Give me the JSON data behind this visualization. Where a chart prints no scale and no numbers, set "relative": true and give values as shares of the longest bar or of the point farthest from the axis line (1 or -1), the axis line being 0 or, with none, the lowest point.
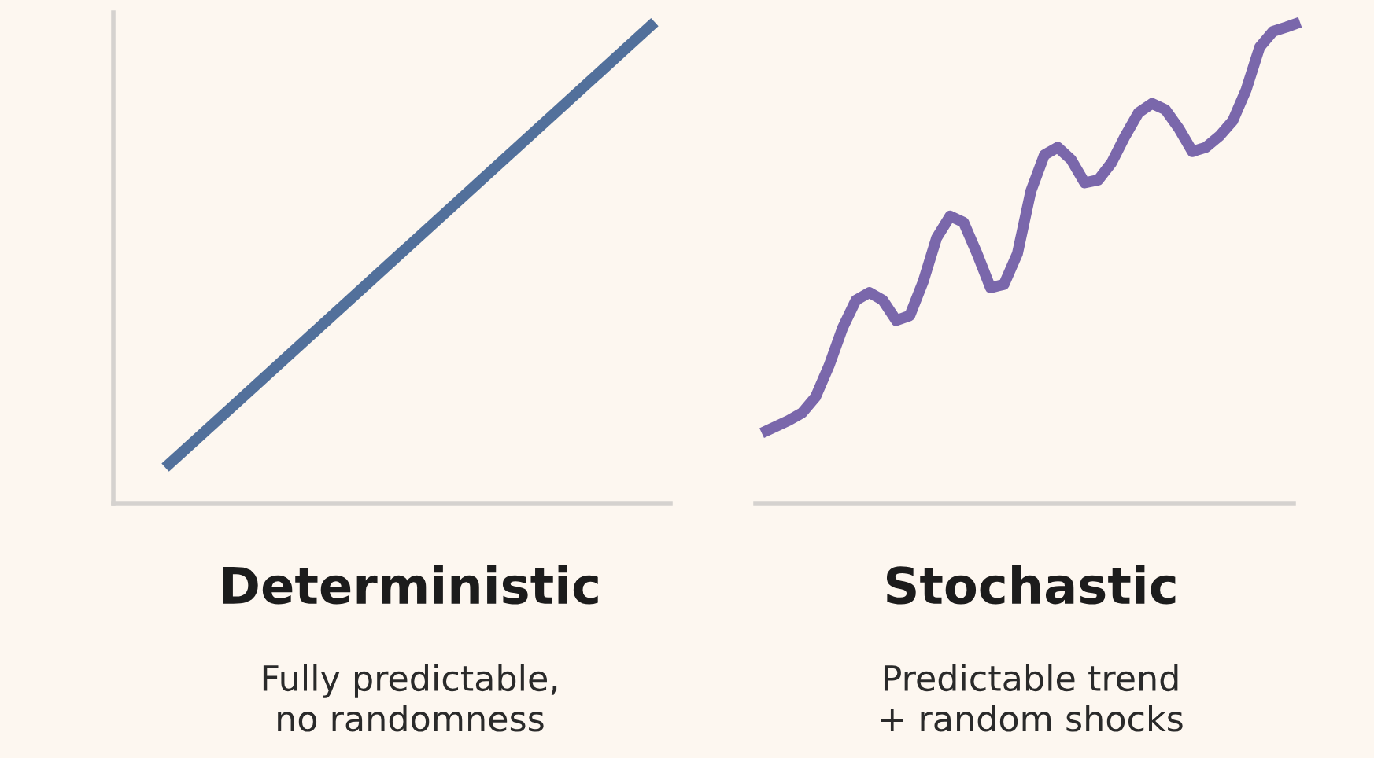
{
  "chart_data": [
    {
      "type": "line",
      "title": "Deterministic",
      "subtitle": "Fully predictable,\nno randomness",
      "relative": true,
      "grid": false,
      "legend": false,
      "categories": [
        null,
        null
      ],
      "series": [
        {
          "color": "#52709b",
          "values": [
            0.074,
            1
          ]
        }
      ]
    },
    {
      "type": "line",
      "title": "Stochastic",
      "subtitle": "Predictable trend\n+ random shocks",
      "relative": true,
      "grid": false,
      "legend": false,
      "categories": [
        null,
        null,
        null,
        null,
        null,
        null,
        null,
        null,
        null,
        null,
        null,
        null,
        null,
        null,
        null,
        null,
        null,
        null,
        null,
        null,
        null,
        null,
        null,
        null,
        null,
        null,
        null,
        null,
        null,
        null,
        null,
        null,
        null,
        null,
        null,
        null,
        null,
        null,
        null,
        null,
        null
      ],
      "series": [
        {
          "color": "#7a67ab",
          "values": [
            0.146,
            0.159,
            0.172,
            0.188,
            0.221,
            0.286,
            0.364,
            0.422,
            0.438,
            0.422,
            0.38,
            0.39,
            0.461,
            0.552,
            0.597,
            0.584,
            0.519,
            0.448,
            0.455,
            0.519,
            0.649,
            0.724,
            0.74,
            0.714,
            0.666,
            0.672,
            0.708,
            0.763,
            0.812,
            0.831,
            0.818,
            0.779,
            0.731,
            0.74,
            0.763,
            0.795,
            0.86,
            0.948,
            0.981,
            0.99,
            1
          ]
        }
      ]
    }
  ]
}
